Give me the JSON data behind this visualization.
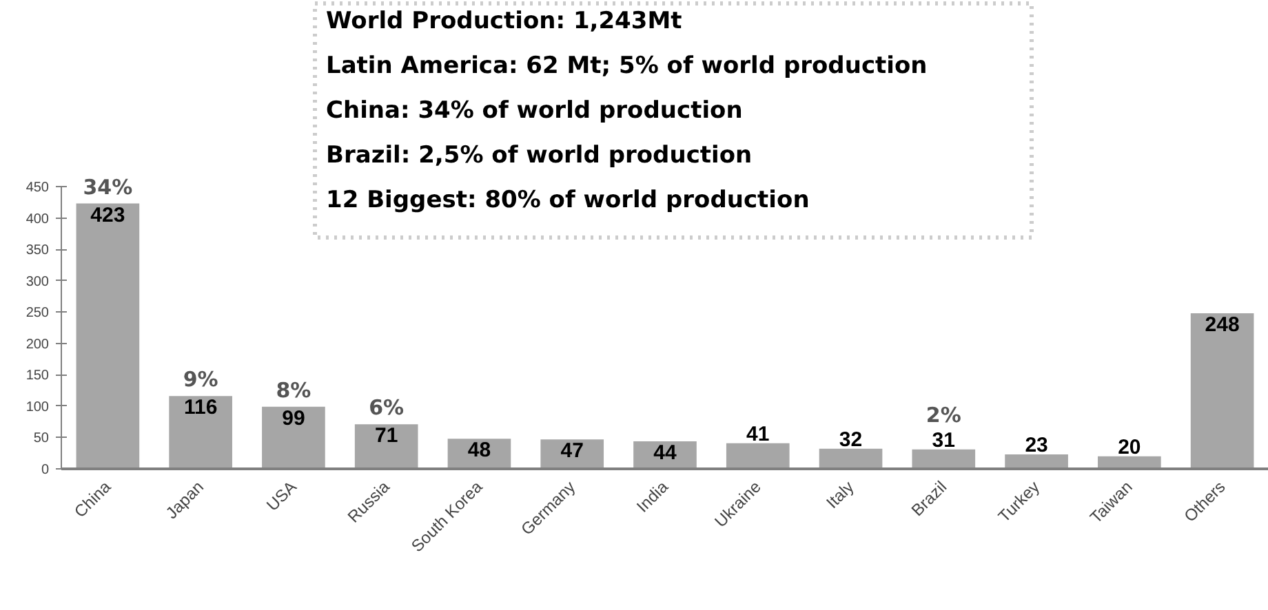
{
  "chart_data": {
    "type": "bar",
    "categories": [
      "China",
      "Japan",
      "USA",
      "Russia",
      "South Korea",
      "Germany",
      "India",
      "Ukraine",
      "Italy",
      "Brazil",
      "Turkey",
      "Taiwan",
      "Others"
    ],
    "values": [
      423,
      116,
      99,
      71,
      48,
      47,
      44,
      41,
      32,
      31,
      23,
      20,
      248
    ],
    "color": "#a6a6a6",
    "ylim": [
      0,
      450
    ],
    "yticks": [
      0,
      50,
      100,
      150,
      200,
      250,
      300,
      350,
      400,
      450
    ],
    "grid": false,
    "data_labels": true,
    "annotations": [
      "World Production: 1,243Mt",
      "Latin America: 62 Mt; 5% of world production",
      "China: 34% of world production",
      "Brazil: 2,5% of world production",
      "12 Biggest: 80% of world production",
      {
        "text": "34%",
        "x": "China",
        "y": 423
      },
      {
        "text": "9%",
        "x": "Japan",
        "y": 116
      },
      {
        "text": "8%",
        "x": "USA",
        "y": 99
      },
      {
        "text": "6%",
        "x": "Russia",
        "y": 71
      },
      {
        "text": "2%",
        "x": "Brazil",
        "y": 31
      }
    ]
  }
}
